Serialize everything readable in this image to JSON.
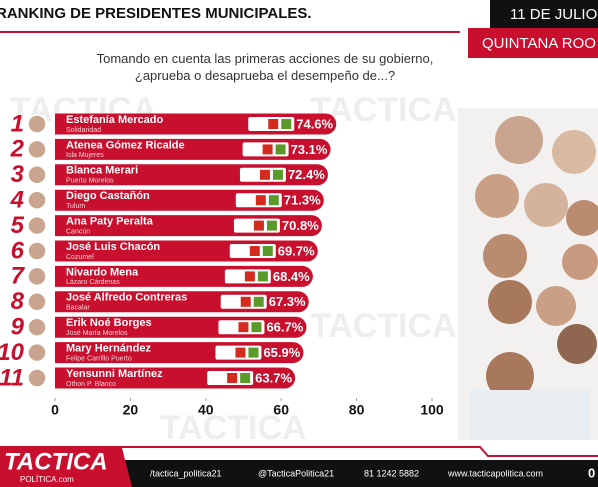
{
  "header": {
    "title": "RANKING DE PRESIDENTES MUNICIPALES.",
    "date": "11 DE JULIO",
    "region": "QUINTANA ROO"
  },
  "chart_data": {
    "type": "hbar",
    "subtitle": "Tomando en cuenta las primeras acciones de su gobierno, ¿aprueba o desaprueba el desempeño de...?",
    "ranks": [
      "1",
      "2",
      "3",
      "4",
      "5",
      "6",
      "7",
      "8",
      "9",
      "10",
      "11"
    ],
    "categories": [
      "Estefanía Mercado",
      "Atenea Gómez Ricalde",
      "Blanca Merari",
      "Diego Castañón",
      "Ana Paty Peralta",
      "José Luis Chacón",
      "Nivardo Mena",
      "José Alfredo Contreras",
      "Erik Noé Borges",
      "Mary Hernández",
      "Yensunni Martínez"
    ],
    "municipalities": [
      "Solidaridad",
      "Isla Mujeres",
      "Puerto Morelos",
      "Tulum",
      "Cancún",
      "Cozumel",
      "Lázaro Cárdenas",
      "Bacalar",
      "José María Morelos",
      "Felipe Carrillo Puerto",
      "Othon P. Blanco"
    ],
    "values": [
      74.6,
      73.1,
      72.4,
      71.3,
      70.8,
      69.7,
      68.4,
      67.3,
      66.7,
      65.9,
      63.7
    ],
    "value_labels": [
      "74.6%",
      "73.1%",
      "72.4%",
      "71.3%",
      "70.8%",
      "69.7%",
      "68.4%",
      "67.3%",
      "66.7%",
      "65.9%",
      "63.7%"
    ],
    "color": "#c8102e",
    "xlim": [
      0,
      100
    ],
    "xticks": [
      0,
      20,
      40,
      60,
      80,
      100
    ],
    "grid": false
  },
  "footer": {
    "brand": "TACTICA",
    "brand_sub": "POLÍTICA.com",
    "facebook": "/tactica_politica21",
    "twitter": "@TacticaPolitica21",
    "phone": "81 1242 5882",
    "web": "www.tacticapolitica.com",
    "page": "0"
  }
}
